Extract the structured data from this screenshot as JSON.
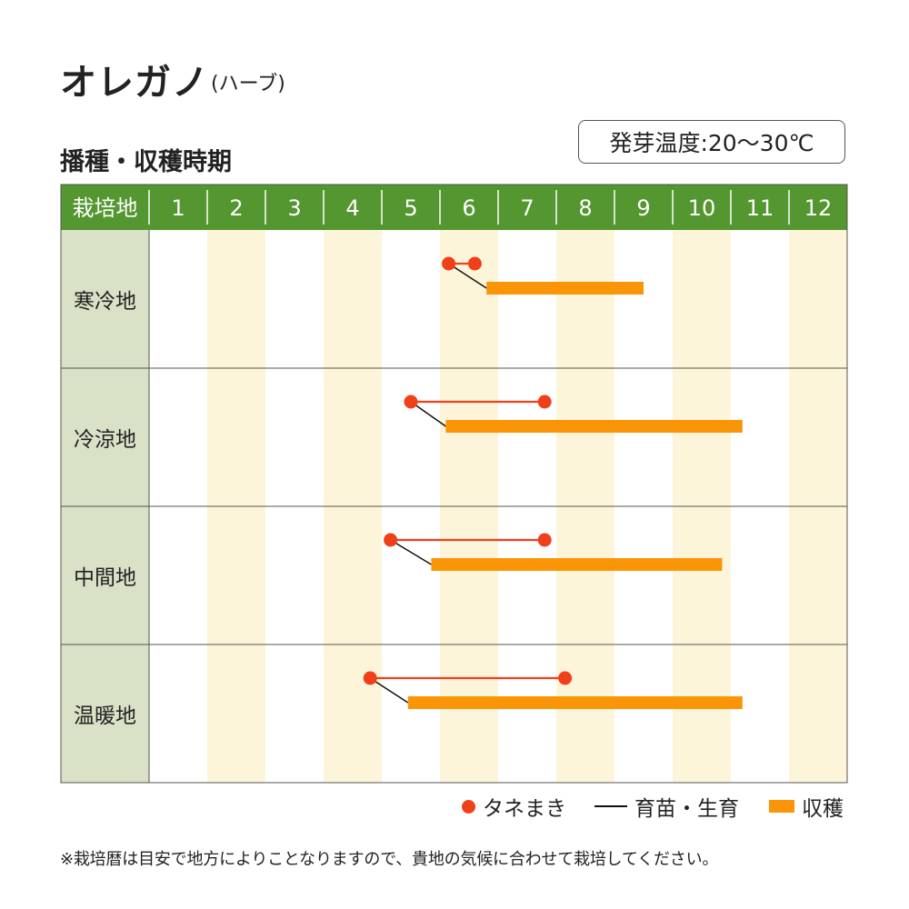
{
  "header": {
    "title": "オレガノ",
    "title_sub": "(ハーブ)",
    "subtitle": "播種・収穫時期",
    "temperature": "発芽温度:20～30℃"
  },
  "legend": {
    "sowing": "タネまき",
    "growing": "育苗・生育",
    "harvest": "収穫"
  },
  "note": "※栽培暦は目安で地方によりことなりますので、貴地の気候に合わせて栽培してください。",
  "colors": {
    "header_bg": "#54962f",
    "row_label_bg": "#d9e1c6",
    "stripe": "#fdf5d9",
    "sowing": "#f0401a",
    "harvest": "#fb9508",
    "growing": "#111111"
  },
  "chart_data": {
    "type": "gantt",
    "corner_label": "栽培地",
    "months": [
      "1",
      "2",
      "3",
      "4",
      "5",
      "6",
      "7",
      "8",
      "9",
      "10",
      "11",
      "12"
    ],
    "rows": [
      {
        "region": "寒冷地",
        "sowing": [
          6.15,
          6.6
        ],
        "harvest": [
          6.8,
          9.5
        ]
      },
      {
        "region": "冷涼地",
        "sowing": [
          5.5,
          7.8
        ],
        "harvest": [
          6.1,
          11.2
        ]
      },
      {
        "region": "中間地",
        "sowing": [
          5.15,
          7.8
        ],
        "harvest": [
          5.85,
          10.85
        ]
      },
      {
        "region": "温暖地",
        "sowing": [
          4.8,
          8.15
        ],
        "harvest": [
          5.45,
          11.2
        ]
      }
    ]
  }
}
